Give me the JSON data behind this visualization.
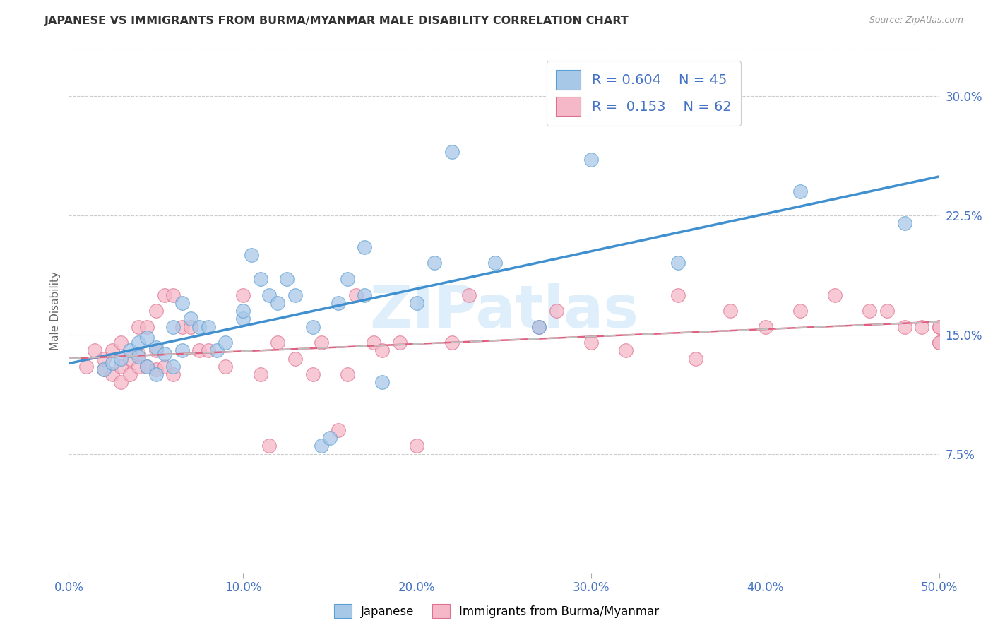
{
  "title": "JAPANESE VS IMMIGRANTS FROM BURMA/MYANMAR MALE DISABILITY CORRELATION CHART",
  "source": "Source: ZipAtlas.com",
  "ylabel": "Male Disability",
  "xlim": [
    0.0,
    0.5
  ],
  "ylim": [
    0.0,
    0.33
  ],
  "xticks": [
    0.0,
    0.1,
    0.2,
    0.3,
    0.4,
    0.5
  ],
  "yticks_right": [
    0.075,
    0.15,
    0.225,
    0.3
  ],
  "ytick_labels_right": [
    "7.5%",
    "15.0%",
    "22.5%",
    "30.0%"
  ],
  "xtick_labels": [
    "0.0%",
    "10.0%",
    "20.0%",
    "30.0%",
    "40.0%",
    "50.0%"
  ],
  "blue_scatter_color": "#a8c8e8",
  "blue_edge_color": "#5a9fd4",
  "pink_scatter_color": "#f4b8c8",
  "pink_edge_color": "#e07090",
  "blue_line_color": "#4090d0",
  "pink_line_color": "#e06080",
  "pink_dash_color": "#c0c0c0",
  "legend_text_color": "#4472c4",
  "right_tick_color": "#4472c4",
  "x_tick_color": "#4472c4",
  "watermark": "ZIPatlas",
  "watermark_color": "#d0e8f8",
  "japanese_x": [
    0.02,
    0.025,
    0.03,
    0.035,
    0.04,
    0.04,
    0.045,
    0.045,
    0.05,
    0.05,
    0.055,
    0.06,
    0.06,
    0.065,
    0.065,
    0.07,
    0.075,
    0.08,
    0.085,
    0.09,
    0.1,
    0.1,
    0.105,
    0.11,
    0.115,
    0.12,
    0.125,
    0.13,
    0.14,
    0.145,
    0.15,
    0.155,
    0.16,
    0.17,
    0.17,
    0.18,
    0.2,
    0.21,
    0.22,
    0.245,
    0.27,
    0.3,
    0.35,
    0.42,
    0.48
  ],
  "japanese_y": [
    0.128,
    0.132,
    0.135,
    0.14,
    0.136,
    0.145,
    0.13,
    0.148,
    0.125,
    0.142,
    0.138,
    0.13,
    0.155,
    0.14,
    0.17,
    0.16,
    0.155,
    0.155,
    0.14,
    0.145,
    0.16,
    0.165,
    0.2,
    0.185,
    0.175,
    0.17,
    0.185,
    0.175,
    0.155,
    0.08,
    0.085,
    0.17,
    0.185,
    0.175,
    0.205,
    0.12,
    0.17,
    0.195,
    0.265,
    0.195,
    0.155,
    0.26,
    0.195,
    0.24,
    0.22
  ],
  "burma_x": [
    0.01,
    0.015,
    0.02,
    0.02,
    0.025,
    0.025,
    0.03,
    0.03,
    0.03,
    0.035,
    0.035,
    0.04,
    0.04,
    0.04,
    0.045,
    0.045,
    0.05,
    0.05,
    0.05,
    0.055,
    0.055,
    0.06,
    0.06,
    0.065,
    0.07,
    0.075,
    0.08,
    0.09,
    0.1,
    0.11,
    0.115,
    0.12,
    0.13,
    0.14,
    0.145,
    0.155,
    0.16,
    0.165,
    0.175,
    0.18,
    0.19,
    0.2,
    0.22,
    0.23,
    0.27,
    0.28,
    0.3,
    0.32,
    0.35,
    0.36,
    0.38,
    0.4,
    0.42,
    0.44,
    0.46,
    0.47,
    0.48,
    0.49,
    0.5,
    0.5,
    0.5,
    0.5
  ],
  "burma_y": [
    0.13,
    0.14,
    0.128,
    0.135,
    0.125,
    0.14,
    0.12,
    0.13,
    0.145,
    0.125,
    0.135,
    0.13,
    0.138,
    0.155,
    0.13,
    0.155,
    0.128,
    0.14,
    0.165,
    0.13,
    0.175,
    0.125,
    0.175,
    0.155,
    0.155,
    0.14,
    0.14,
    0.13,
    0.175,
    0.125,
    0.08,
    0.145,
    0.135,
    0.125,
    0.145,
    0.09,
    0.125,
    0.175,
    0.145,
    0.14,
    0.145,
    0.08,
    0.145,
    0.175,
    0.155,
    0.165,
    0.145,
    0.14,
    0.175,
    0.135,
    0.165,
    0.155,
    0.165,
    0.175,
    0.165,
    0.165,
    0.155,
    0.155,
    0.145,
    0.145,
    0.155,
    0.155
  ]
}
